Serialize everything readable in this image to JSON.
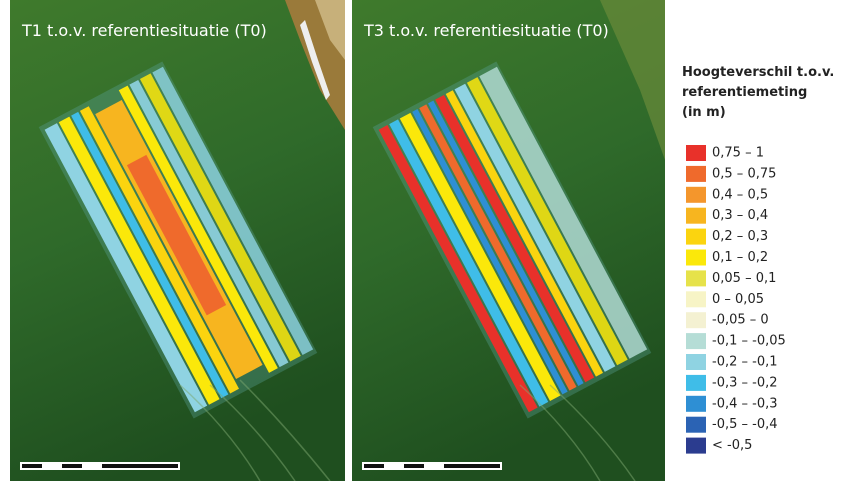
{
  "panels": [
    {
      "title": "T1 t.o.v. referentiesituatie (T0)"
    },
    {
      "title": "T3 t.o.v. referentiesituatie (T0)"
    }
  ],
  "legend": {
    "title": [
      "Hoogteverschil t.o.v.",
      "referentiemeting",
      "(in m)"
    ],
    "items": [
      {
        "label": "0,75 – 1",
        "color": "#e8312a"
      },
      {
        "label": "0,5 – 0,75",
        "color": "#ef6a2c"
      },
      {
        "label": "0,4 – 0,5",
        "color": "#f4962c"
      },
      {
        "label": "0,3 – 0,4",
        "color": "#f7b51f"
      },
      {
        "label": "0,2 – 0,3",
        "color": "#fbd40f"
      },
      {
        "label": "0,1 – 0,2",
        "color": "#fbe80a"
      },
      {
        "label": "0,05 – 0,1",
        "color": "#e6e24a"
      },
      {
        "label": "0 – 0,05",
        "color": "#f7f4c6"
      },
      {
        "label": "-0,05 – 0",
        "color": "#f4f1d2"
      },
      {
        "label": "-0,1 – -0,05",
        "color": "#b5ddd6"
      },
      {
        "label": "-0,2 – -0,1",
        "color": "#8fd3e2"
      },
      {
        "label": "-0,3 – -0,2",
        "color": "#3fbde8"
      },
      {
        "label": "-0,4 – -0,3",
        "color": "#2e8fd4"
      },
      {
        "label": "-0,5 – -0,4",
        "color": "#2b63b4"
      },
      {
        "label": "< -0,5",
        "color": "#2b3c8f"
      }
    ]
  }
}
